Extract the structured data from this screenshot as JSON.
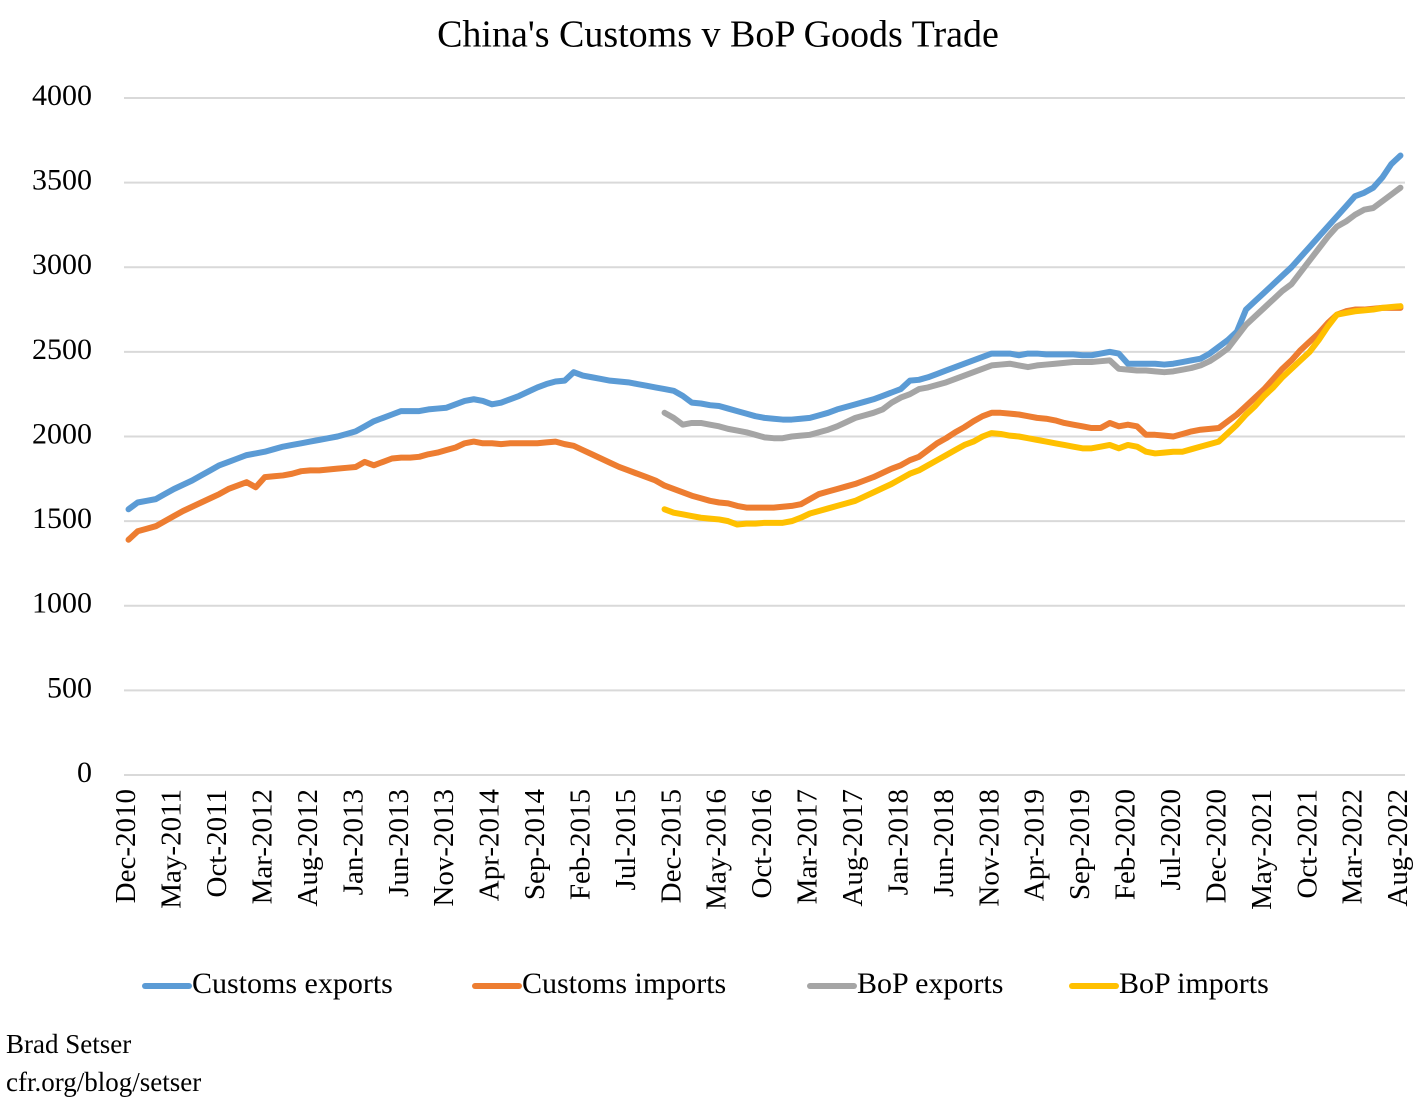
{
  "chart_data": {
    "type": "line",
    "title": "China's Customs v BoP Goods Trade",
    "categories": [
      "Dec-2010",
      null,
      null,
      null,
      null,
      "May-2011",
      null,
      null,
      null,
      null,
      "Oct-2011",
      null,
      null,
      null,
      null,
      "Mar-2012",
      null,
      null,
      null,
      null,
      "Aug-2012",
      null,
      null,
      null,
      null,
      "Jan-2013",
      null,
      null,
      null,
      null,
      "Jun-2013",
      null,
      null,
      null,
      null,
      "Nov-2013",
      null,
      null,
      null,
      null,
      "Apr-2014",
      null,
      null,
      null,
      null,
      "Sep-2014",
      null,
      null,
      null,
      null,
      "Feb-2015",
      null,
      null,
      null,
      null,
      "Jul-2015",
      null,
      null,
      null,
      null,
      "Dec-2015",
      null,
      null,
      null,
      null,
      "May-2016",
      null,
      null,
      null,
      null,
      "Oct-2016",
      null,
      null,
      null,
      null,
      "Mar-2017",
      null,
      null,
      null,
      null,
      "Aug-2017",
      null,
      null,
      null,
      null,
      "Jan-2018",
      null,
      null,
      null,
      null,
      "Jun-2018",
      null,
      null,
      null,
      null,
      "Nov-2018",
      null,
      null,
      null,
      null,
      "Apr-2019",
      null,
      null,
      null,
      null,
      "Sep-2019",
      null,
      null,
      null,
      null,
      "Feb-2020",
      null,
      null,
      null,
      null,
      "Jul-2020",
      null,
      null,
      null,
      null,
      "Dec-2020",
      null,
      null,
      null,
      null,
      "May-2021",
      null,
      null,
      null,
      null,
      "Oct-2021",
      null,
      null,
      null,
      null,
      "Mar-2022",
      null,
      null,
      null,
      null,
      "Aug-2022"
    ],
    "series": [
      {
        "name": "Customs exports",
        "color": "#5b9bd5",
        "values": [
          1570,
          1610,
          1620,
          1630,
          1660,
          1690,
          1715,
          1740,
          1770,
          1800,
          1830,
          1850,
          1870,
          1890,
          1900,
          1910,
          1925,
          1940,
          1950,
          1960,
          1970,
          1980,
          1990,
          2000,
          2015,
          2030,
          2060,
          2090,
          2110,
          2130,
          2150,
          2150,
          2150,
          2160,
          2165,
          2170,
          2190,
          2210,
          2220,
          2210,
          2190,
          2200,
          2220,
          2240,
          2265,
          2290,
          2310,
          2325,
          2330,
          2380,
          2360,
          2350,
          2340,
          2330,
          2325,
          2320,
          2310,
          2300,
          2290,
          2280,
          2270,
          2240,
          2200,
          2195,
          2185,
          2180,
          2165,
          2150,
          2135,
          2120,
          2110,
          2105,
          2100,
          2100,
          2105,
          2110,
          2125,
          2140,
          2160,
          2175,
          2190,
          2205,
          2220,
          2240,
          2260,
          2280,
          2330,
          2335,
          2350,
          2370,
          2390,
          2410,
          2430,
          2450,
          2470,
          2490,
          2490,
          2490,
          2480,
          2490,
          2490,
          2485,
          2485,
          2485,
          2485,
          2480,
          2480,
          2490,
          2500,
          2490,
          2430,
          2430,
          2430,
          2430,
          2425,
          2430,
          2440,
          2450,
          2460,
          2490,
          2530,
          2570,
          2620,
          2750,
          2800,
          2850,
          2900,
          2950,
          3000,
          3060,
          3120,
          3180,
          3240,
          3300,
          3360,
          3420,
          3440,
          3470,
          3530,
          3610,
          3660
        ]
      },
      {
        "name": "Customs imports",
        "color": "#ed7d31",
        "values": [
          1390,
          1440,
          1455,
          1470,
          1500,
          1530,
          1560,
          1585,
          1610,
          1635,
          1660,
          1690,
          1710,
          1730,
          1700,
          1760,
          1765,
          1770,
          1780,
          1795,
          1800,
          1800,
          1805,
          1810,
          1815,
          1820,
          1850,
          1830,
          1850,
          1870,
          1875,
          1875,
          1880,
          1895,
          1905,
          1920,
          1935,
          1960,
          1970,
          1960,
          1960,
          1955,
          1960,
          1960,
          1960,
          1960,
          1965,
          1970,
          1955,
          1945,
          1920,
          1895,
          1870,
          1845,
          1820,
          1800,
          1780,
          1760,
          1740,
          1710,
          1690,
          1670,
          1650,
          1635,
          1620,
          1610,
          1605,
          1590,
          1580,
          1580,
          1580,
          1580,
          1585,
          1590,
          1600,
          1630,
          1660,
          1675,
          1690,
          1705,
          1720,
          1740,
          1760,
          1785,
          1810,
          1830,
          1860,
          1880,
          1920,
          1960,
          1990,
          2025,
          2055,
          2090,
          2120,
          2140,
          2140,
          2135,
          2130,
          2120,
          2110,
          2105,
          2095,
          2080,
          2070,
          2060,
          2050,
          2050,
          2080,
          2060,
          2070,
          2060,
          2010,
          2010,
          2005,
          2000,
          2015,
          2030,
          2040,
          2045,
          2050,
          2090,
          2130,
          2180,
          2230,
          2280,
          2340,
          2400,
          2450,
          2510,
          2560,
          2610,
          2670,
          2720,
          2740,
          2750,
          2750,
          2755,
          2760,
          2760,
          2760
        ]
      },
      {
        "name": "BoP exports",
        "color": "#a5a5a5",
        "values": [
          null,
          null,
          null,
          null,
          null,
          null,
          null,
          null,
          null,
          null,
          null,
          null,
          null,
          null,
          null,
          null,
          null,
          null,
          null,
          null,
          null,
          null,
          null,
          null,
          null,
          null,
          null,
          null,
          null,
          null,
          null,
          null,
          null,
          null,
          null,
          null,
          null,
          null,
          null,
          null,
          null,
          null,
          null,
          null,
          null,
          null,
          null,
          null,
          null,
          null,
          null,
          null,
          null,
          null,
          null,
          null,
          null,
          null,
          null,
          2140,
          2110,
          2070,
          2080,
          2080,
          2070,
          2060,
          2045,
          2035,
          2025,
          2010,
          1995,
          1990,
          1990,
          2000,
          2005,
          2010,
          2025,
          2040,
          2060,
          2085,
          2110,
          2125,
          2140,
          2160,
          2200,
          2230,
          2250,
          2280,
          2290,
          2305,
          2320,
          2340,
          2360,
          2380,
          2400,
          2420,
          2425,
          2430,
          2420,
          2410,
          2420,
          2425,
          2430,
          2435,
          2440,
          2440,
          2440,
          2445,
          2450,
          2400,
          2395,
          2390,
          2390,
          2385,
          2380,
          2385,
          2395,
          2405,
          2420,
          2445,
          2480,
          2520,
          2590,
          2660,
          2710,
          2760,
          2810,
          2860,
          2900,
          2970,
          3040,
          3110,
          3180,
          3240,
          3270,
          3310,
          3340,
          3350,
          3390,
          3430,
          3470
        ]
      },
      {
        "name": "BoP imports",
        "color": "#ffc000",
        "values": [
          null,
          null,
          null,
          null,
          null,
          null,
          null,
          null,
          null,
          null,
          null,
          null,
          null,
          null,
          null,
          null,
          null,
          null,
          null,
          null,
          null,
          null,
          null,
          null,
          null,
          null,
          null,
          null,
          null,
          null,
          null,
          null,
          null,
          null,
          null,
          null,
          null,
          null,
          null,
          null,
          null,
          null,
          null,
          null,
          null,
          null,
          null,
          null,
          null,
          null,
          null,
          null,
          null,
          null,
          null,
          null,
          null,
          null,
          null,
          1570,
          1550,
          1540,
          1530,
          1520,
          1515,
          1510,
          1500,
          1480,
          1485,
          1485,
          1490,
          1490,
          1490,
          1500,
          1520,
          1545,
          1560,
          1575,
          1590,
          1605,
          1620,
          1645,
          1670,
          1695,
          1720,
          1750,
          1780,
          1800,
          1830,
          1860,
          1890,
          1920,
          1950,
          1970,
          2000,
          2020,
          2015,
          2005,
          2000,
          1990,
          1980,
          1970,
          1960,
          1950,
          1940,
          1930,
          1930,
          1940,
          1950,
          1930,
          1950,
          1940,
          1910,
          1900,
          1905,
          1910,
          1910,
          1925,
          1940,
          1955,
          1970,
          2020,
          2070,
          2130,
          2180,
          2240,
          2290,
          2350,
          2400,
          2450,
          2500,
          2570,
          2650,
          2720,
          2730,
          2740,
          2745,
          2750,
          2760,
          2765,
          2770
        ]
      }
    ],
    "ylim": [
      0,
      4000
    ],
    "yticks": [
      0,
      500,
      1000,
      1500,
      2000,
      2500,
      3000,
      3500,
      4000
    ],
    "grid": true,
    "legend": "bottom"
  },
  "footer": {
    "author": "Brad Setser",
    "source": "cfr.org/blog/setser"
  }
}
